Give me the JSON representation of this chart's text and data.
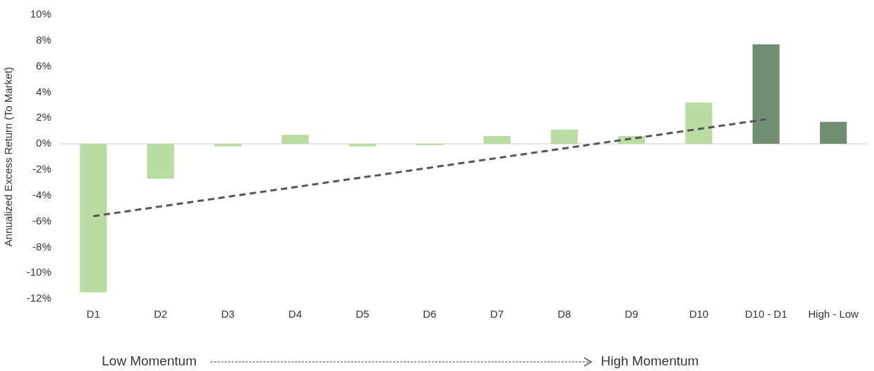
{
  "chart_data": {
    "type": "bar",
    "ylabel": "Annualized Excess Return (To Market)",
    "categories": [
      "D1",
      "D2",
      "D3",
      "D4",
      "D5",
      "D6",
      "D7",
      "D8",
      "D9",
      "D10",
      "D10 - D1",
      "High - Low"
    ],
    "series": [
      {
        "colors": [
          "#b9dca0",
          "#b9dca0",
          "#b9dca0",
          "#b9dca0",
          "#b9dca0",
          "#b9dca0",
          "#b9dca0",
          "#b9dca0",
          "#b9dca0",
          "#b9dca0",
          "#6f8f70",
          "#6f8f70"
        ],
        "values": [
          -11.5,
          -2.7,
          -0.2,
          0.7,
          -0.2,
          -0.1,
          0.6,
          1.1,
          0.6,
          3.2,
          7.7,
          1.7
        ]
      },
      {
        "type": "line",
        "color": "#555555",
        "line_style": "dashed",
        "marker": "none",
        "values": [
          -5.6,
          -4.85,
          -4.1,
          -3.35,
          -2.6,
          -1.85,
          -1.1,
          -0.35,
          0.4,
          1.15,
          1.9,
          null
        ]
      }
    ],
    "ylim": [
      -12,
      10
    ],
    "yticks": [
      {
        "value": -12,
        "label": "-12%"
      },
      {
        "value": -10,
        "label": "-10%"
      },
      {
        "value": -8,
        "label": "-8%"
      },
      {
        "value": -6,
        "label": "-6%"
      },
      {
        "value": -4,
        "label": "-4%"
      },
      {
        "value": -2,
        "label": "-2%"
      },
      {
        "value": 0,
        "label": "0%"
      },
      {
        "value": 2,
        "label": "2%"
      },
      {
        "value": 4,
        "label": "4%"
      },
      {
        "value": 6,
        "label": "6%"
      },
      {
        "value": 8,
        "label": "8%"
      },
      {
        "value": 10,
        "label": "10%"
      }
    ],
    "grid": false,
    "legend": false,
    "ref_lines": [
      {
        "axis": "y",
        "value": 0,
        "color": "#cccccc"
      }
    ],
    "annotations": [
      "Low Momentum",
      "High Momentum"
    ]
  }
}
